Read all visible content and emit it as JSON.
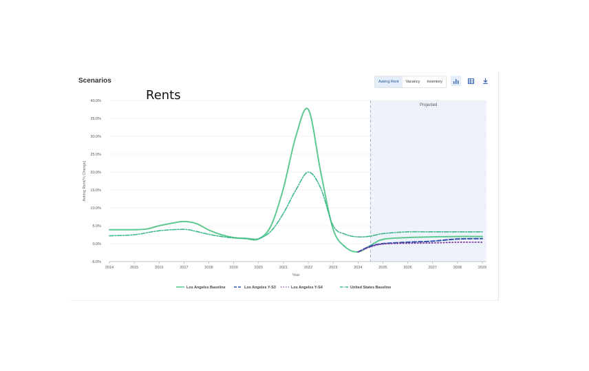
{
  "panel": {
    "title": "Scenarios",
    "overlay_title": "Rents",
    "tabs": [
      {
        "label": "Asking Rent",
        "active": true
      },
      {
        "label": "Vacancy",
        "active": false
      },
      {
        "label": "Inventory",
        "active": false
      }
    ],
    "icons": [
      {
        "name": "bar-chart-icon",
        "active": true
      },
      {
        "name": "table-icon",
        "active": false
      },
      {
        "name": "download-icon",
        "active": false
      }
    ]
  },
  "chart_data": {
    "type": "line",
    "title": "",
    "xlabel": "Year",
    "ylabel": "Asking Rent(% Change)",
    "xlim": [
      2014,
      2029
    ],
    "ylim": [
      -5,
      40
    ],
    "x_ticks": [
      "2014",
      "2015",
      "2016",
      "2017",
      "2018",
      "2019",
      "2020",
      "2021",
      "2022",
      "2023",
      "2024",
      "2025",
      "2026",
      "2027",
      "2028",
      "2029"
    ],
    "y_ticks": [
      "-5.0%",
      "0.0%",
      "5.0%",
      "10.0%",
      "15.0%",
      "20.0%",
      "25.0%",
      "30.0%",
      "35.0%",
      "40.0%"
    ],
    "grid": true,
    "legend_position": "bottom",
    "projected_region": {
      "label": "Projected",
      "start": 2024.5,
      "end": 2030.2
    },
    "series": [
      {
        "name": "Los Angeles Baseline",
        "style": "solid",
        "color": "#5dc98f",
        "x": [
          2014,
          2015,
          2015.5,
          2016,
          2016.5,
          2017,
          2017.5,
          2018,
          2018.5,
          2019,
          2019.5,
          2020,
          2020.5,
          2021,
          2021.5,
          2022,
          2022.5,
          2023,
          2023.5,
          2024,
          2024.5,
          2025,
          2026,
          2027,
          2028,
          2029
        ],
        "y": [
          3.9,
          3.9,
          4.1,
          5.0,
          5.7,
          6.2,
          5.6,
          3.8,
          2.5,
          1.7,
          1.4,
          1.3,
          5.0,
          15.5,
          30.0,
          37.5,
          20.0,
          4.0,
          -1.0,
          -2.3,
          -0.5,
          1.2,
          1.7,
          1.9,
          2.0,
          2.0
        ]
      },
      {
        "name": "Los Angeles Y-S3",
        "style": "dash",
        "color": "#2f4fa8",
        "x": [
          2024,
          2024.5,
          2025,
          2026,
          2027,
          2028,
          2029
        ],
        "y": [
          -2.3,
          -0.7,
          0.0,
          0.4,
          0.7,
          1.3,
          1.4
        ]
      },
      {
        "name": "Los Angeles Y-S4",
        "style": "dot",
        "color": "#7a3aa0",
        "x": [
          2024,
          2024.5,
          2025,
          2026,
          2027,
          2028,
          2029
        ],
        "y": [
          -2.3,
          -0.9,
          -0.1,
          0.1,
          0.2,
          0.4,
          0.4
        ]
      },
      {
        "name": "United States Baseline",
        "style": "dashdot",
        "color": "#3cb88a",
        "x": [
          2014,
          2015,
          2016,
          2017,
          2017.5,
          2018,
          2018.5,
          2019,
          2019.5,
          2020,
          2020.5,
          2021,
          2021.5,
          2022,
          2022.5,
          2023,
          2023.5,
          2024,
          2024.5,
          2025,
          2026,
          2027,
          2028,
          2029
        ],
        "y": [
          2.2,
          2.5,
          3.6,
          4.0,
          3.4,
          2.6,
          2.0,
          1.6,
          1.5,
          1.4,
          3.5,
          8.5,
          15.0,
          20.0,
          15.5,
          5.0,
          2.6,
          1.9,
          2.1,
          2.8,
          3.3,
          3.3,
          3.3,
          3.3
        ]
      }
    ]
  }
}
